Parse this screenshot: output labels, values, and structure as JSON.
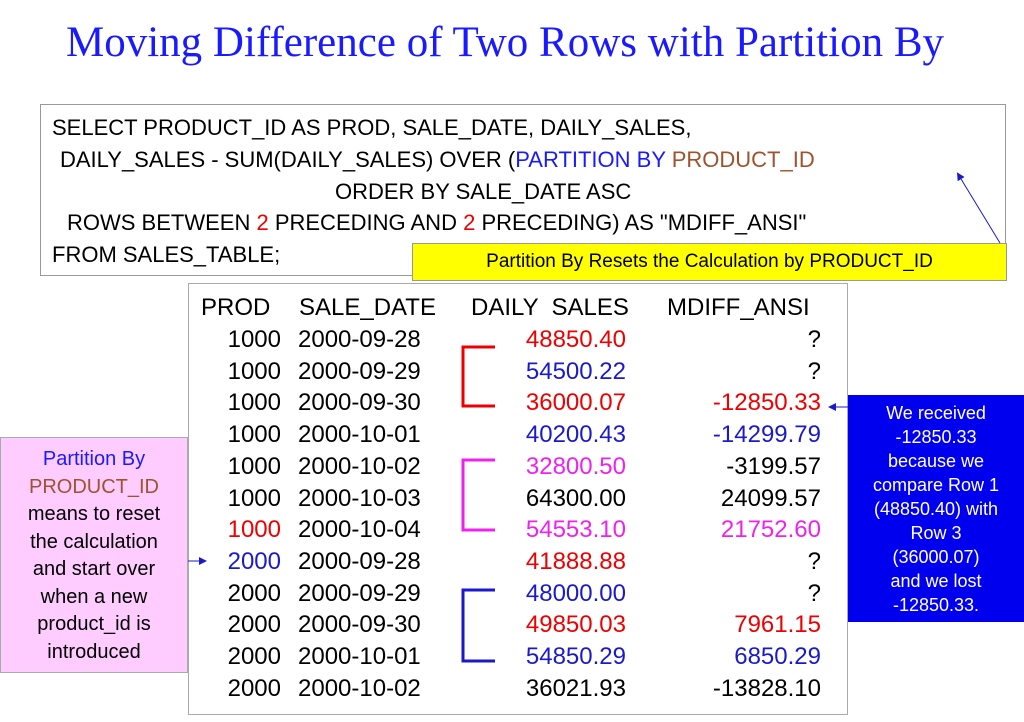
{
  "title": "Moving Difference of Two Rows with Partition By",
  "sql": {
    "line1": "SELECT PRODUCT_ID AS PROD, SALE_DATE, DAILY_SALES,",
    "line2_a": "DAILY_SALES - SUM(DAILY_SALES) OVER (",
    "line2_b": "PARTITION BY",
    "line2_c": " PRODUCT_ID",
    "line3": "ORDER BY SALE_DATE ASC",
    "line4_a": "ROWS BETWEEN ",
    "line4_b": "2",
    "line4_c": " PRECEDING AND ",
    "line4_d": "2",
    "line4_e": " PRECEDING) AS \"MDIFF_ANSI\"",
    "line5": "FROM SALES_TABLE;"
  },
  "yellow_note": "Partition By Resets the Calculation by PRODUCT_ID",
  "table": {
    "headers": [
      "PROD",
      "SALE_DATE",
      "DAILY  SALES",
      "MDIFF_ANSI"
    ],
    "rows": [
      {
        "prod": "1000",
        "date": "2000-09-28",
        "sales": "48850.40",
        "mdiff": "?",
        "prod_color": "#000",
        "sales_color": "#e00",
        "mdiff_color": "#000"
      },
      {
        "prod": "1000",
        "date": "2000-09-29",
        "sales": "54500.22",
        "mdiff": "?",
        "prod_color": "#000",
        "sales_color": "#1a1acc",
        "mdiff_color": "#000"
      },
      {
        "prod": "1000",
        "date": "2000-09-30",
        "sales": "36000.07",
        "mdiff": "-12850.33",
        "prod_color": "#000",
        "sales_color": "#e00",
        "mdiff_color": "#e00"
      },
      {
        "prod": "1000",
        "date": "2000-10-01",
        "sales": "40200.43",
        "mdiff": "-14299.79",
        "prod_color": "#000",
        "sales_color": "#1a1acc",
        "mdiff_color": "#1a1acc"
      },
      {
        "prod": "1000",
        "date": "2000-10-02",
        "sales": "32800.50",
        "mdiff": "-3199.57",
        "prod_color": "#000",
        "sales_color": "#ee22ee",
        "mdiff_color": "#000"
      },
      {
        "prod": "1000",
        "date": "2000-10-03",
        "sales": "64300.00",
        "mdiff": "24099.57",
        "prod_color": "#000",
        "sales_color": "#000",
        "mdiff_color": "#000"
      },
      {
        "prod": "1000",
        "date": "2000-10-04",
        "sales": "54553.10",
        "mdiff": "21752.60",
        "prod_color": "#e00",
        "sales_color": "#ee22ee",
        "mdiff_color": "#ee22ee"
      },
      {
        "prod": "2000",
        "date": "2000-09-28",
        "sales": "41888.88",
        "mdiff": "?",
        "prod_color": "#1a1acc",
        "sales_color": "#e00",
        "mdiff_color": "#000"
      },
      {
        "prod": "2000",
        "date": "2000-09-29",
        "sales": "48000.00",
        "mdiff": "?",
        "prod_color": "#000",
        "sales_color": "#1a1acc",
        "mdiff_color": "#000"
      },
      {
        "prod": "2000",
        "date": "2000-09-30",
        "sales": "49850.03",
        "mdiff": "7961.15",
        "prod_color": "#000",
        "sales_color": "#e00",
        "mdiff_color": "#e00"
      },
      {
        "prod": "2000",
        "date": "2000-10-01",
        "sales": "54850.29",
        "mdiff": "6850.29",
        "prod_color": "#000",
        "sales_color": "#1a1acc",
        "mdiff_color": "#1a1acc"
      },
      {
        "prod": "2000",
        "date": "2000-10-02",
        "sales": "36021.93",
        "mdiff": "-13828.10",
        "prod_color": "#000",
        "sales_color": "#000",
        "mdiff_color": "#000"
      }
    ]
  },
  "pink_note": {
    "line1": "Partition By",
    "line2": "PRODUCT_ID",
    "rest": [
      "means to reset",
      "the calculation",
      "and start over",
      "when a new",
      "product_id is",
      "introduced"
    ]
  },
  "blue_note": [
    "We received",
    "-12850.33",
    "because we",
    "compare Row 1",
    "(48850.40) with",
    "Row 3",
    "(36000.07)",
    "and we lost",
    "-12850.33."
  ],
  "colors": {
    "title": "#1a1aff",
    "red": "#e00",
    "blue": "#1a1acc",
    "magenta": "#ee22ee",
    "yellow": "#ffff00",
    "pink": "#ffccff",
    "blue_box": "#0000ee",
    "brown": "#a0522d"
  }
}
